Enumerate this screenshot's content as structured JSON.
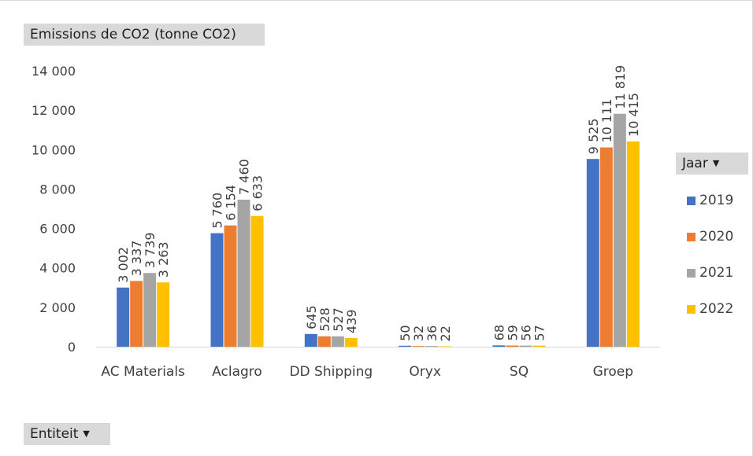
{
  "value_field": {
    "label": "Emissions de CO2 (tonne CO2)"
  },
  "axis_field": {
    "label": "Entiteit"
  },
  "legend_field": {
    "label": "Jaar"
  },
  "colors": {
    "2019": "#4472c4",
    "2020": "#ed7d31",
    "2021": "#a5a5a5",
    "2022": "#ffc000"
  },
  "chart_data": {
    "type": "bar",
    "title": "",
    "xlabel": "",
    "ylabel": "",
    "ylim": [
      0,
      14000
    ],
    "yticks": [
      0,
      2000,
      4000,
      6000,
      8000,
      10000,
      12000,
      14000
    ],
    "ytick_labels": [
      "0",
      "2 000",
      "4 000",
      "6 000",
      "8 000",
      "10 000",
      "12 000",
      "14 000"
    ],
    "categories": [
      "AC Materials",
      "Aclagro",
      "DD Shipping",
      "Oryx",
      "SQ",
      "Groep"
    ],
    "legend_position": "right",
    "grid": false,
    "series": [
      {
        "name": "2019",
        "values": [
          3002,
          5760,
          645,
          50,
          68,
          9525
        ],
        "labels": [
          "3 002",
          "5 760",
          "645",
          "50",
          "68",
          "9 525"
        ]
      },
      {
        "name": "2020",
        "values": [
          3337,
          6154,
          528,
          32,
          59,
          10111
        ],
        "labels": [
          "3 337",
          "6 154",
          "528",
          "32",
          "59",
          "10 111"
        ]
      },
      {
        "name": "2021",
        "values": [
          3739,
          7460,
          527,
          36,
          56,
          11819
        ],
        "labels": [
          "3 739",
          "7 460",
          "527",
          "36",
          "56",
          "11 819"
        ]
      },
      {
        "name": "2022",
        "values": [
          3263,
          6633,
          439,
          22,
          57,
          10415
        ],
        "labels": [
          "3 263",
          "6 633",
          "439",
          "22",
          "57",
          "10 415"
        ]
      }
    ]
  }
}
